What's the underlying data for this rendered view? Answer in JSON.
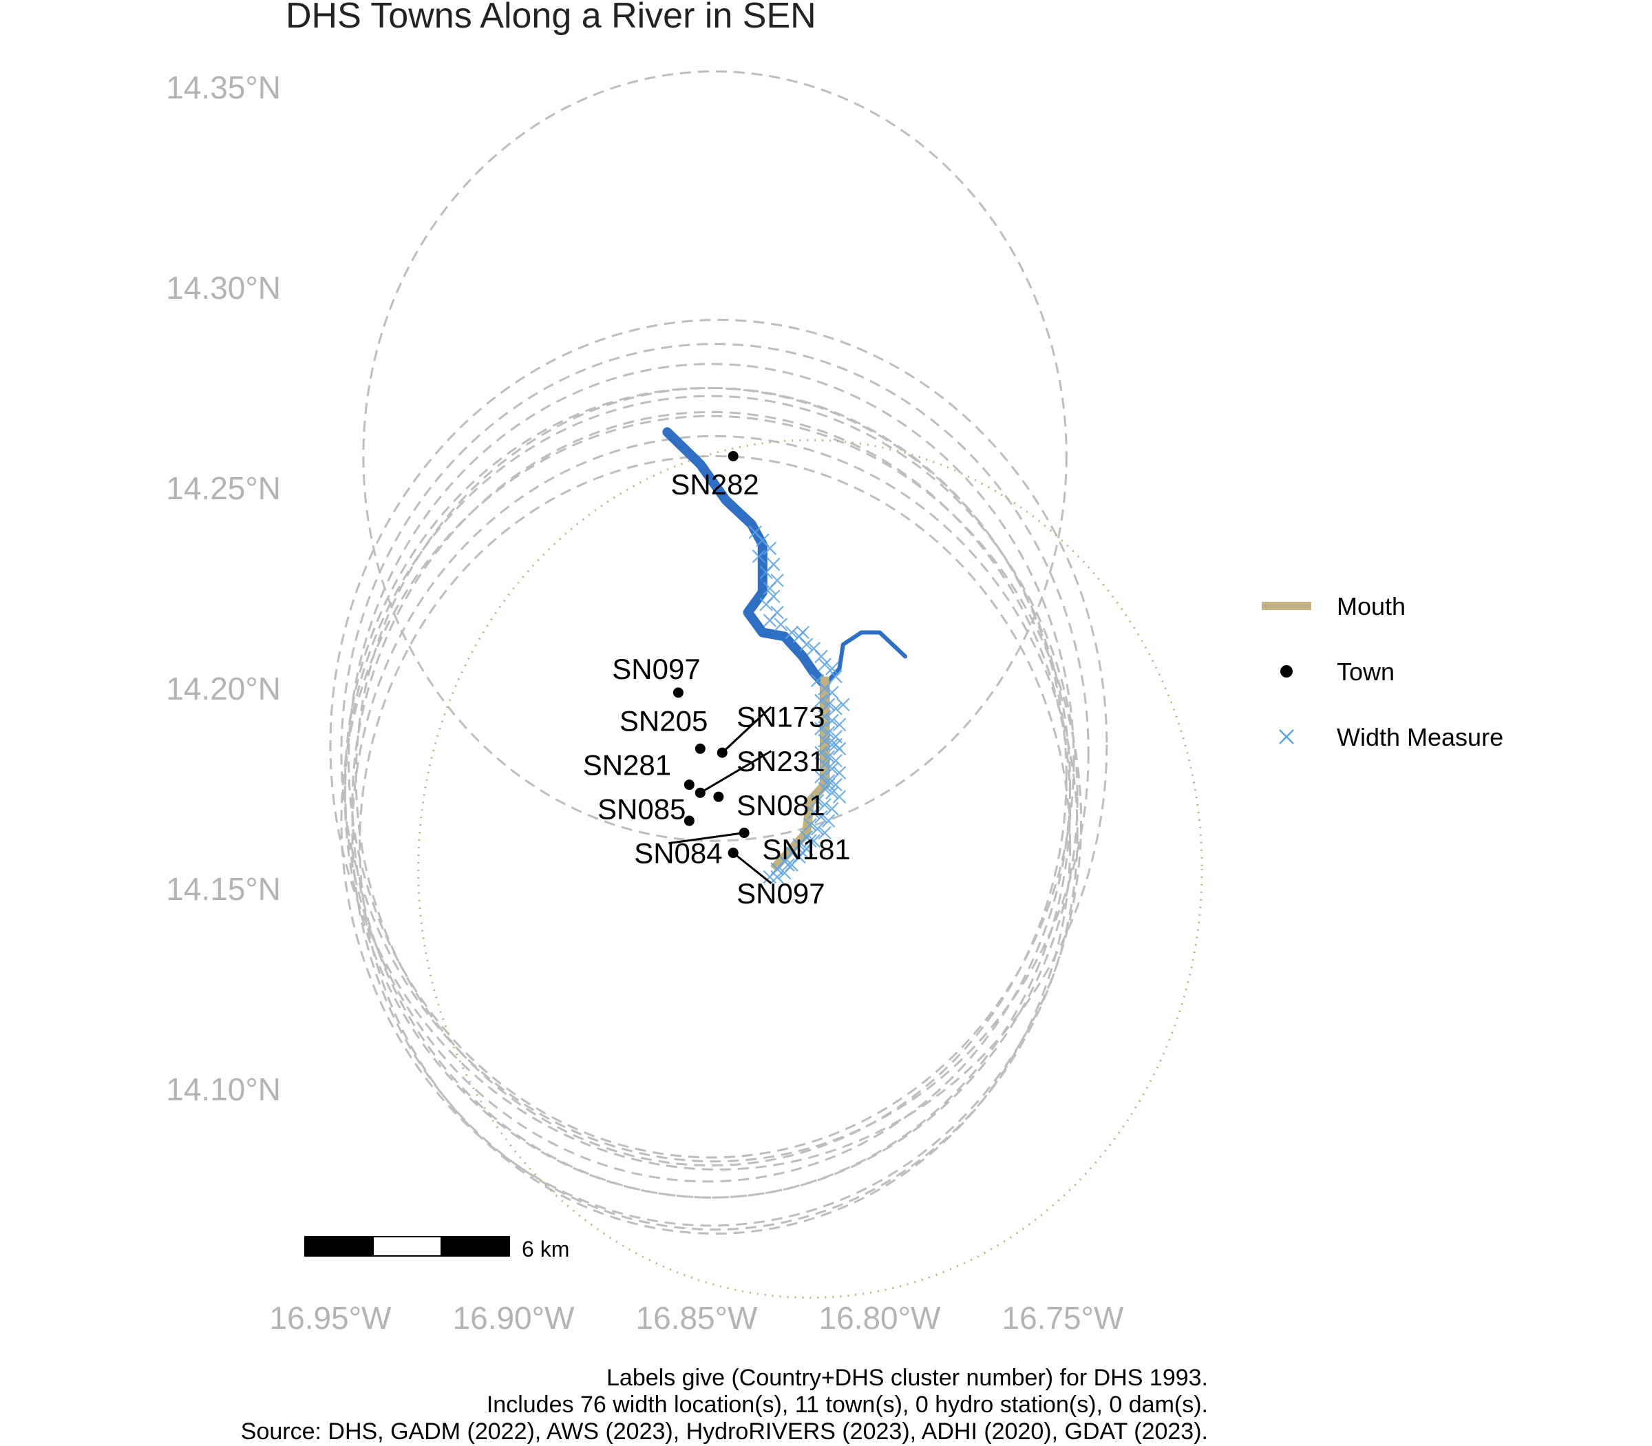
{
  "title": "DHS Towns Along a River in SEN",
  "axes": {
    "lat_range": [
      14.075,
      14.36
    ],
    "lon_range": [
      -16.965,
      -16.735
    ],
    "lat_ticks": [
      {
        "value": 14.35,
        "label": "14.35°N"
      },
      {
        "value": 14.3,
        "label": "14.30°N"
      },
      {
        "value": 14.25,
        "label": "14.25°N"
      },
      {
        "value": 14.2,
        "label": "14.20°N"
      },
      {
        "value": 14.15,
        "label": "14.15°N"
      },
      {
        "value": 14.1,
        "label": "14.10°N"
      }
    ],
    "lon_ticks": [
      {
        "value": -16.95,
        "label": "16.95°W"
      },
      {
        "value": -16.9,
        "label": "16.90°W"
      },
      {
        "value": -16.85,
        "label": "16.85°W"
      },
      {
        "value": -16.8,
        "label": "16.80°W"
      },
      {
        "value": -16.75,
        "label": "16.75°W"
      }
    ]
  },
  "colors": {
    "river": "#2e6fc4",
    "mouth": "#c2b280",
    "town": "#000000",
    "width_measure": "#5aa2e6",
    "buffer": "#bdbdbd",
    "mouth_buffer": "#c2b280",
    "axis_text": "#b3b3b3"
  },
  "river": {
    "main_path": [
      [
        -16.858,
        14.264
      ],
      [
        -16.849,
        14.256
      ],
      [
        -16.842,
        14.247
      ],
      [
        -16.835,
        14.241
      ],
      [
        -16.832,
        14.236
      ],
      [
        -16.832,
        14.224
      ],
      [
        -16.836,
        14.219
      ],
      [
        -16.832,
        14.214
      ],
      [
        -16.826,
        14.213
      ],
      [
        -16.821,
        14.208
      ],
      [
        -16.818,
        14.204
      ],
      [
        -16.815,
        14.201
      ],
      [
        -16.815,
        14.194
      ],
      [
        -16.815,
        14.185
      ],
      [
        -16.815,
        14.176
      ]
    ],
    "tributary_path": [
      [
        -16.815,
        14.201
      ],
      [
        -16.811,
        14.205
      ],
      [
        -16.81,
        14.211
      ],
      [
        -16.805,
        14.214
      ],
      [
        -16.8,
        14.214
      ],
      [
        -16.793,
        14.208
      ]
    ],
    "mouth_path": [
      [
        -16.815,
        14.203
      ],
      [
        -16.815,
        14.176
      ],
      [
        -16.819,
        14.172
      ],
      [
        -16.82,
        14.164
      ],
      [
        -16.827,
        14.157
      ],
      [
        -16.829,
        14.155
      ]
    ]
  },
  "width_measures": [
    [
      -16.834,
      14.239
    ],
    [
      -16.832,
      14.237
    ],
    [
      -16.83,
      14.235
    ],
    [
      -16.833,
      14.233
    ],
    [
      -16.829,
      14.231
    ],
    [
      -16.831,
      14.229
    ],
    [
      -16.828,
      14.227
    ],
    [
      -16.83,
      14.225
    ],
    [
      -16.829,
      14.223
    ],
    [
      -16.831,
      14.221
    ],
    [
      -16.828,
      14.219
    ],
    [
      -16.83,
      14.217
    ],
    [
      -16.827,
      14.216
    ],
    [
      -16.824,
      14.214
    ],
    [
      -16.822,
      14.213
    ],
    [
      -16.82,
      14.211
    ],
    [
      -16.818,
      14.21
    ],
    [
      -16.816,
      14.208
    ],
    [
      -16.815,
      14.206
    ],
    [
      -16.813,
      14.205
    ],
    [
      -16.812,
      14.203
    ],
    [
      -16.817,
      14.202
    ],
    [
      -16.815,
      14.2
    ],
    [
      -16.813,
      14.199
    ],
    [
      -16.816,
      14.197
    ],
    [
      -16.814,
      14.196
    ],
    [
      -16.812,
      14.195
    ],
    [
      -16.815,
      14.193
    ],
    [
      -16.813,
      14.192
    ],
    [
      -16.811,
      14.191
    ],
    [
      -16.816,
      14.19
    ],
    [
      -16.814,
      14.189
    ],
    [
      -16.812,
      14.188
    ],
    [
      -16.815,
      14.187
    ],
    [
      -16.813,
      14.186
    ],
    [
      -16.811,
      14.185
    ],
    [
      -16.816,
      14.184
    ],
    [
      -16.814,
      14.183
    ],
    [
      -16.812,
      14.182
    ],
    [
      -16.815,
      14.181
    ],
    [
      -16.813,
      14.18
    ],
    [
      -16.811,
      14.179
    ],
    [
      -16.816,
      14.178
    ],
    [
      -16.814,
      14.177
    ],
    [
      -16.812,
      14.176
    ],
    [
      -16.815,
      14.175
    ],
    [
      -16.813,
      14.174
    ],
    [
      -16.811,
      14.173
    ],
    [
      -16.817,
      14.172
    ],
    [
      -16.815,
      14.171
    ],
    [
      -16.813,
      14.17
    ],
    [
      -16.818,
      14.169
    ],
    [
      -16.816,
      14.168
    ],
    [
      -16.814,
      14.167
    ],
    [
      -16.819,
      14.166
    ],
    [
      -16.817,
      14.165
    ],
    [
      -16.815,
      14.164
    ],
    [
      -16.82,
      14.163
    ],
    [
      -16.818,
      14.162
    ],
    [
      -16.822,
      14.161
    ],
    [
      -16.82,
      14.16
    ],
    [
      -16.824,
      14.159
    ],
    [
      -16.822,
      14.158
    ],
    [
      -16.826,
      14.157
    ],
    [
      -16.824,
      14.156
    ],
    [
      -16.828,
      14.155
    ],
    [
      -16.826,
      14.154
    ],
    [
      -16.83,
      14.153
    ],
    [
      -16.828,
      14.153
    ],
    [
      -16.825,
      14.156
    ],
    [
      -16.821,
      14.159
    ],
    [
      -16.819,
      14.162
    ],
    [
      -16.814,
      14.176
    ],
    [
      -16.812,
      14.186
    ],
    [
      -16.81,
      14.196
    ],
    [
      -16.821,
      14.214
    ]
  ],
  "towns": [
    {
      "name": "SN282",
      "lon": -16.84,
      "lat": 14.258,
      "label_lon": -16.845,
      "label_lat": 14.251,
      "leader": false
    },
    {
      "name": "SN097",
      "lon": -16.855,
      "lat": 14.199,
      "label_lon": -16.861,
      "label_lat": 14.205,
      "leader": false
    },
    {
      "name": "SN205",
      "lon": -16.849,
      "lat": 14.185,
      "label_lon": -16.859,
      "label_lat": 14.192,
      "leader": false
    },
    {
      "name": "SN173",
      "lon": -16.843,
      "lat": 14.184,
      "label_lon": -16.827,
      "label_lat": 14.193,
      "leader": true
    },
    {
      "name": "SN231",
      "lon": -16.849,
      "lat": 14.174,
      "label_lon": -16.827,
      "label_lat": 14.182,
      "leader": true
    },
    {
      "name": "SN281",
      "lon": -16.852,
      "lat": 14.176,
      "label_lon": -16.869,
      "label_lat": 14.181,
      "leader": false
    },
    {
      "name": "SN085",
      "lon": -16.852,
      "lat": 14.167,
      "label_lon": -16.865,
      "label_lat": 14.17,
      "leader": false
    },
    {
      "name": "SN081",
      "lon": -16.844,
      "lat": 14.173,
      "label_lon": -16.827,
      "label_lat": 14.171,
      "leader": false
    },
    {
      "name": "SN084",
      "lon": -16.837,
      "lat": 14.164,
      "label_lon": -16.855,
      "label_lat": 14.159,
      "leader": true
    },
    {
      "name": "SN181",
      "lon": -16.84,
      "lat": 14.159,
      "label_lon": -16.82,
      "label_lat": 14.16,
      "leader": false
    },
    {
      "name": "SN097",
      "lon": -16.84,
      "lat": 14.159,
      "label_lon": -16.827,
      "label_lat": 14.149,
      "leader": true
    }
  ],
  "buffers": [
    {
      "lon": -16.845,
      "lat": 14.258,
      "r": 0.096
    },
    {
      "lon": -16.844,
      "lat": 14.186,
      "r": 0.106
    },
    {
      "lon": -16.845,
      "lat": 14.184,
      "r": 0.102
    },
    {
      "lon": -16.846,
      "lat": 14.182,
      "r": 0.099
    },
    {
      "lon": -16.846,
      "lat": 14.178,
      "r": 0.097
    },
    {
      "lon": -16.847,
      "lat": 14.176,
      "r": 0.099
    },
    {
      "lon": -16.846,
      "lat": 14.173,
      "r": 0.1
    },
    {
      "lon": -16.846,
      "lat": 14.171,
      "r": 0.098
    },
    {
      "lon": -16.846,
      "lat": 14.167,
      "r": 0.101
    },
    {
      "lon": -16.845,
      "lat": 14.164,
      "r": 0.099
    },
    {
      "lon": -16.845,
      "lat": 14.161,
      "r": 0.097
    }
  ],
  "mouth_buffer": {
    "lon": -16.819,
    "lat": 14.155,
    "r": 0.107
  },
  "legend": {
    "items": [
      {
        "label": "Mouth",
        "symbol": "line"
      },
      {
        "label": "Town",
        "symbol": "dot"
      },
      {
        "label": "Width Measure",
        "symbol": "cross"
      }
    ]
  },
  "scale_bar": {
    "label": "6 km"
  },
  "caption": {
    "line1": "Labels give (Country+DHS cluster number) for DHS 1993.",
    "line2": "Includes 76 width location(s), 11 town(s), 0 hydro station(s), 0 dam(s).",
    "line3": "Source: DHS, GADM (2022), AWS (2023), HydroRIVERS (2023), ADHI (2020), GDAT (2023)."
  }
}
